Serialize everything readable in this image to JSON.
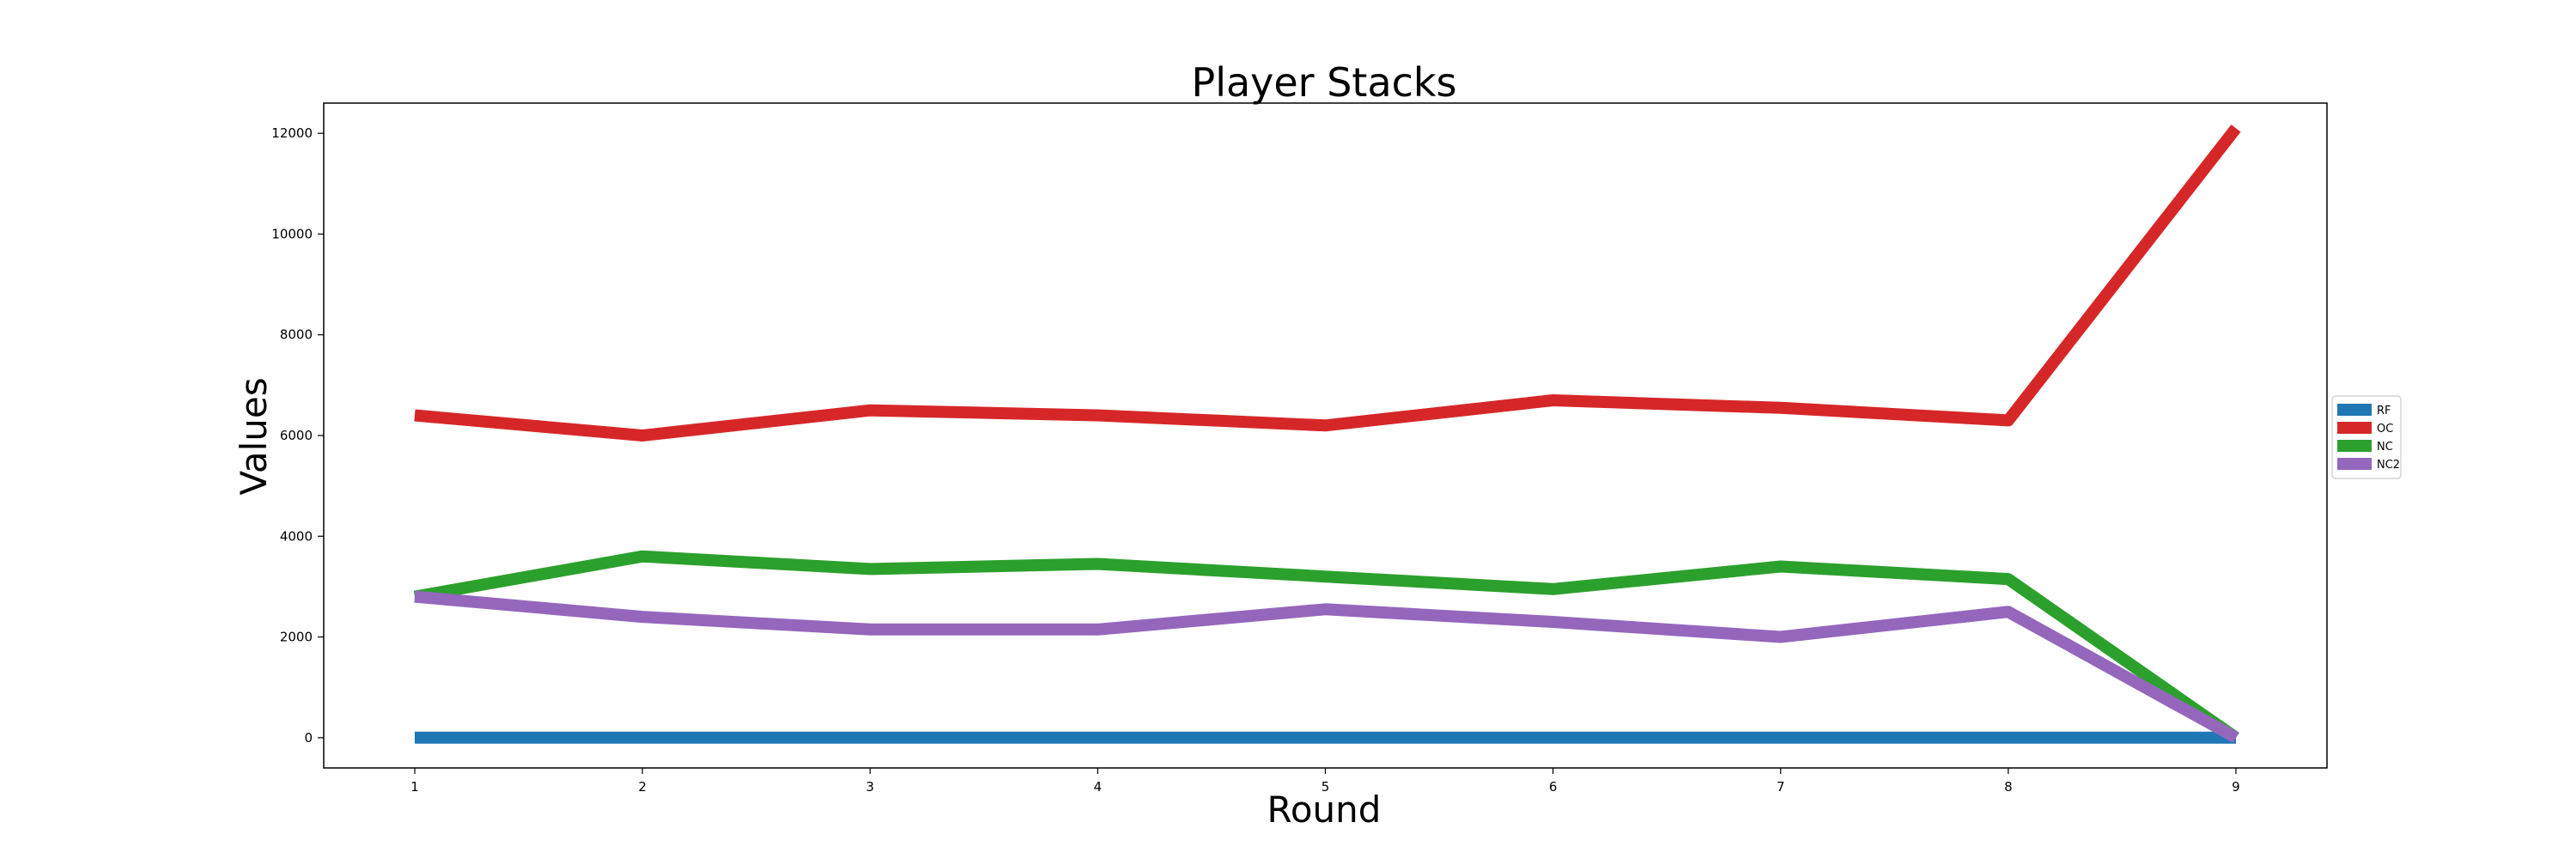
{
  "chart_data": {
    "type": "line",
    "title": "Player Stacks",
    "xlabel": "Round",
    "ylabel": "Values",
    "x": [
      1,
      2,
      3,
      4,
      5,
      6,
      7,
      8,
      9
    ],
    "xlim": [
      0.6,
      9.4
    ],
    "ylim": [
      -600,
      12600
    ],
    "yticks": [
      0,
      2000,
      4000,
      6000,
      8000,
      10000,
      12000
    ],
    "grid": false,
    "legend_position": "right",
    "series": [
      {
        "name": "RF",
        "color": "#1f77b4",
        "values": [
          0,
          0,
          0,
          0,
          0,
          0,
          0,
          0,
          0
        ]
      },
      {
        "name": "OC",
        "color": "#d62728",
        "values": [
          6400,
          6000,
          6500,
          6400,
          6200,
          6700,
          6550,
          6300,
          12100
        ]
      },
      {
        "name": "NC",
        "color": "#2ca02c",
        "values": [
          2800,
          3600,
          3350,
          3450,
          3200,
          2950,
          3400,
          3150,
          0
        ]
      },
      {
        "name": "NC2",
        "color": "#9467bd",
        "values": [
          2800,
          2400,
          2150,
          2150,
          2550,
          2300,
          2000,
          2500,
          0
        ]
      }
    ]
  }
}
